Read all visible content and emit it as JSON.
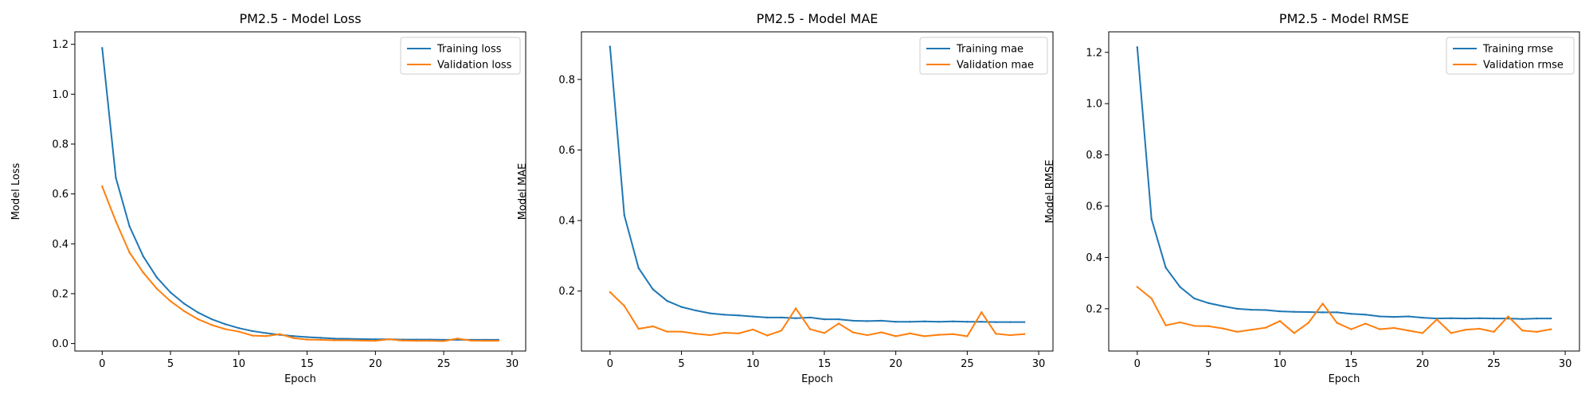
{
  "chart_data": [
    {
      "type": "line",
      "title": "PM2.5 - Model Loss",
      "xlabel": "Epoch",
      "ylabel": "Model Loss",
      "xlim": [
        -2,
        31
      ],
      "ylim": [
        -0.03,
        1.25
      ],
      "xticks": [
        0,
        5,
        10,
        15,
        20,
        25,
        30
      ],
      "yticks": [
        0.0,
        0.2,
        0.4,
        0.6,
        0.8,
        1.0,
        1.2
      ],
      "ytick_labels": [
        "0.0",
        "0.2",
        "0.4",
        "0.6",
        "0.8",
        "1.0",
        "1.2"
      ],
      "legend": "top-right",
      "x": [
        0,
        1,
        2,
        3,
        4,
        5,
        6,
        7,
        8,
        9,
        10,
        11,
        12,
        13,
        14,
        15,
        16,
        17,
        18,
        19,
        20,
        21,
        22,
        23,
        24,
        25,
        26,
        27,
        28,
        29
      ],
      "series": [
        {
          "name": "Training loss",
          "color": "#1f77b4",
          "values": [
            1.185,
            0.665,
            0.47,
            0.35,
            0.265,
            0.205,
            0.16,
            0.125,
            0.098,
            0.078,
            0.062,
            0.05,
            0.042,
            0.035,
            0.03,
            0.026,
            0.023,
            0.02,
            0.019,
            0.018,
            0.017,
            0.017,
            0.016,
            0.016,
            0.016,
            0.015,
            0.015,
            0.015,
            0.015,
            0.015
          ]
        },
        {
          "name": "Validation loss",
          "color": "#ff7f0e",
          "values": [
            0.63,
            0.49,
            0.365,
            0.285,
            0.22,
            0.17,
            0.13,
            0.098,
            0.075,
            0.058,
            0.048,
            0.032,
            0.03,
            0.038,
            0.022,
            0.016,
            0.015,
            0.013,
            0.013,
            0.012,
            0.011,
            0.017,
            0.012,
            0.011,
            0.011,
            0.01,
            0.02,
            0.012,
            0.011,
            0.011
          ]
        }
      ]
    },
    {
      "type": "line",
      "title": "PM2.5 - Model MAE",
      "xlabel": "Epoch",
      "ylabel": "Model MAE",
      "xlim": [
        -2,
        31
      ],
      "ylim": [
        0.03,
        0.935
      ],
      "xticks": [
        0,
        5,
        10,
        15,
        20,
        25,
        30
      ],
      "yticks": [
        0.2,
        0.4,
        0.6,
        0.8
      ],
      "ytick_labels": [
        "0.2",
        "0.4",
        "0.6",
        "0.8"
      ],
      "legend": "top-right",
      "x": [
        0,
        1,
        2,
        3,
        4,
        5,
        6,
        7,
        8,
        9,
        10,
        11,
        12,
        13,
        14,
        15,
        16,
        17,
        18,
        19,
        20,
        21,
        22,
        23,
        24,
        25,
        26,
        27,
        28,
        29
      ],
      "series": [
        {
          "name": "Training mae",
          "color": "#1f77b4",
          "values": [
            0.893,
            0.415,
            0.265,
            0.205,
            0.172,
            0.155,
            0.145,
            0.137,
            0.133,
            0.131,
            0.128,
            0.125,
            0.125,
            0.123,
            0.125,
            0.12,
            0.12,
            0.116,
            0.115,
            0.116,
            0.113,
            0.113,
            0.114,
            0.113,
            0.114,
            0.113,
            0.113,
            0.112,
            0.112,
            0.112
          ]
        },
        {
          "name": "Validation mae",
          "color": "#ff7f0e",
          "values": [
            0.197,
            0.158,
            0.093,
            0.1,
            0.085,
            0.085,
            0.079,
            0.075,
            0.082,
            0.08,
            0.091,
            0.074,
            0.088,
            0.151,
            0.092,
            0.081,
            0.108,
            0.083,
            0.075,
            0.083,
            0.072,
            0.08,
            0.072,
            0.076,
            0.078,
            0.072,
            0.14,
            0.079,
            0.075,
            0.078
          ]
        }
      ]
    },
    {
      "type": "line",
      "title": "PM2.5 - Model RMSE",
      "xlabel": "Epoch",
      "ylabel": "Model RMSE",
      "xlim": [
        -2,
        31
      ],
      "ylim": [
        0.035,
        1.28
      ],
      "xticks": [
        0,
        5,
        10,
        15,
        20,
        25,
        30
      ],
      "yticks": [
        0.2,
        0.4,
        0.6,
        0.8,
        1.0,
        1.2
      ],
      "ytick_labels": [
        "0.2",
        "0.4",
        "0.6",
        "0.8",
        "1.0",
        "1.2"
      ],
      "legend": "top-right",
      "x": [
        0,
        1,
        2,
        3,
        4,
        5,
        6,
        7,
        8,
        9,
        10,
        11,
        12,
        13,
        14,
        15,
        16,
        17,
        18,
        19,
        20,
        21,
        22,
        23,
        24,
        25,
        26,
        27,
        28,
        29
      ],
      "series": [
        {
          "name": "Training rmse",
          "color": "#1f77b4",
          "values": [
            1.22,
            0.55,
            0.36,
            0.285,
            0.24,
            0.222,
            0.21,
            0.2,
            0.196,
            0.195,
            0.19,
            0.188,
            0.187,
            0.186,
            0.186,
            0.18,
            0.177,
            0.17,
            0.168,
            0.17,
            0.165,
            0.162,
            0.163,
            0.162,
            0.163,
            0.162,
            0.162,
            0.16,
            0.162,
            0.162
          ]
        },
        {
          "name": "Validation rmse",
          "color": "#ff7f0e",
          "values": [
            0.285,
            0.24,
            0.135,
            0.147,
            0.133,
            0.132,
            0.123,
            0.11,
            0.118,
            0.126,
            0.152,
            0.105,
            0.145,
            0.22,
            0.145,
            0.12,
            0.142,
            0.12,
            0.125,
            0.115,
            0.105,
            0.158,
            0.105,
            0.118,
            0.122,
            0.11,
            0.17,
            0.115,
            0.11,
            0.12
          ]
        }
      ]
    }
  ]
}
